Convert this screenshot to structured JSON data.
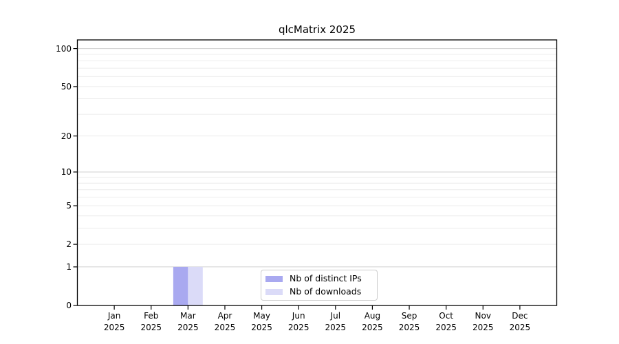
{
  "chart_data": {
    "type": "bar",
    "title": "qlcMatrix 2025",
    "categories": [
      "Jan 2025",
      "Feb 2025",
      "Mar 2025",
      "Apr 2025",
      "May 2025",
      "Jun 2025",
      "Jul 2025",
      "Aug 2025",
      "Sep 2025",
      "Oct 2025",
      "Nov 2025",
      "Dec 2025"
    ],
    "series": [
      {
        "name": "Nb of distinct IPs",
        "color": "#a9a9f0",
        "values": [
          0,
          0,
          1,
          0,
          0,
          0,
          0,
          0,
          0,
          0,
          0,
          0
        ]
      },
      {
        "name": "Nb of downloads",
        "color": "#dbdbf8",
        "values": [
          0,
          0,
          1,
          0,
          0,
          0,
          0,
          0,
          0,
          0,
          0,
          0
        ]
      }
    ],
    "xlabel": "",
    "ylabel": "",
    "y_scale": "log1p",
    "ylim": [
      0,
      117
    ],
    "y_ticks": [
      0,
      1,
      2,
      5,
      10,
      20,
      50,
      100
    ],
    "grid": "horizontal major and log-minor gridlines",
    "legend_position": "inside lower center"
  },
  "style": {
    "background": "#ffffff",
    "axis_color": "#000000",
    "grid_major": "#d0d0d0",
    "grid_minor": "#ececec",
    "legend_border": "#cccccc"
  }
}
